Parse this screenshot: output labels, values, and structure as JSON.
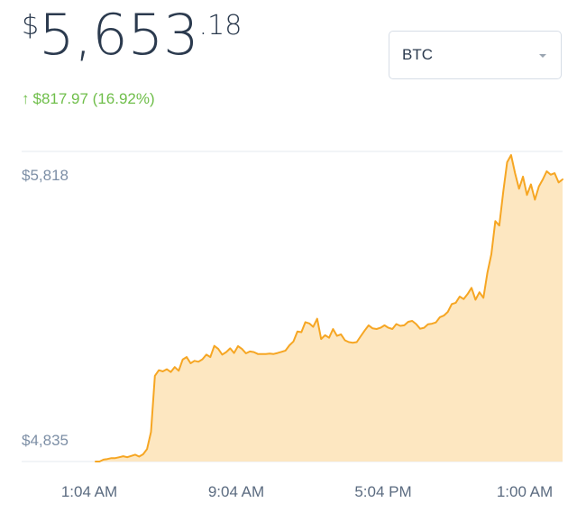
{
  "price": {
    "currency_symbol": "$",
    "integer": "5,653",
    "decimal": ".18"
  },
  "change": {
    "direction": "up",
    "text": "$817.97 (16.92%)",
    "color": "#6fbe4a"
  },
  "currency_select": {
    "value": "BTC"
  },
  "chart_data": {
    "type": "area",
    "color": "#f6a623",
    "fill_color": "#fde7c1",
    "ylim": [
      4835,
      5818
    ],
    "y_tick_labels": [
      "$5,818",
      "$4,835"
    ],
    "x_tick_labels": [
      "1:04 AM",
      "9:04 AM",
      "5:04 PM",
      "1:00 AM"
    ],
    "series": [
      {
        "values": [
          4835,
          4835,
          4841,
          4843,
          4846,
          4846,
          4849,
          4852,
          4849,
          4853,
          4857,
          4851,
          4858,
          4875,
          4930,
          5110,
          5128,
          5124,
          5131,
          5122,
          5138,
          5126,
          5162,
          5170,
          5150,
          5158,
          5155,
          5163,
          5178,
          5170,
          5206,
          5196,
          5178,
          5186,
          5198,
          5183,
          5205,
          5196,
          5182,
          5188,
          5186,
          5180,
          5180,
          5180,
          5181,
          5180,
          5183,
          5187,
          5191,
          5208,
          5220,
          5252,
          5250,
          5282,
          5278,
          5267,
          5293,
          5228,
          5240,
          5232,
          5260,
          5238,
          5243,
          5224,
          5218,
          5216,
          5218,
          5237,
          5255,
          5272,
          5262,
          5260,
          5264,
          5272,
          5264,
          5260,
          5276,
          5270,
          5272,
          5283,
          5286,
          5276,
          5261,
          5264,
          5275,
          5277,
          5281,
          5298,
          5303,
          5315,
          5340,
          5344,
          5364,
          5356,
          5372,
          5392,
          5354,
          5378,
          5360,
          5440,
          5500,
          5606,
          5592,
          5700,
          5795,
          5818,
          5760,
          5710,
          5749,
          5690,
          5724,
          5675,
          5717,
          5740,
          5766,
          5755,
          5760,
          5730,
          5740
        ]
      }
    ]
  }
}
